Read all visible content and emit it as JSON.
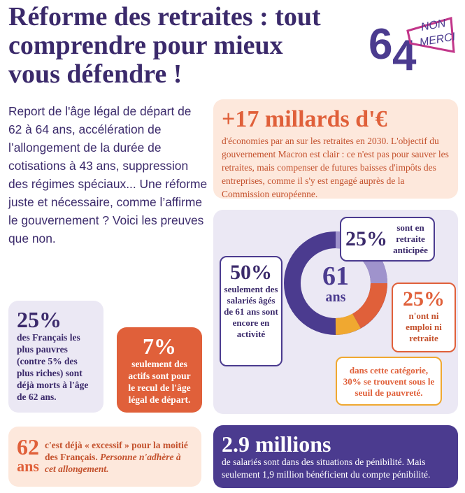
{
  "header": {
    "title": "Réforme des retraites : tout comprendre pour mieux vous défendre !",
    "logo": {
      "number_left": "6",
      "number_right": "4",
      "word_top": "NON",
      "word_bottom": "MERCI"
    }
  },
  "intro": "Report de l'âge légal de départ de 62 à 64 ans, accélération de l’allongement de la durée de cotisations à 43 ans, suppression des régimes spéciaux... Une réforme juste et nécessaire, comme l’affirme le gouvernement ? Voici les preuves que non.",
  "savings": {
    "headline": "+17 millards d'€",
    "text": "d'économies par an sur les retraites en 2030. L'objectif du gouvernement Macron est clair : ce n'est pas pour sauver les retraites, mais compenser de futures baisses d'impôts des entreprises, comme il s'y est engagé auprès de la Commission européenne."
  },
  "donut": {
    "center_number": "61",
    "center_unit": "ans",
    "employed": {
      "figure": "50%",
      "text": "seulement des salariés âgés de 61 ans sont encore en activité"
    },
    "retired": {
      "figure": "25%",
      "text": "sont en retraite anticipée"
    },
    "neither": {
      "figure": "25%",
      "text": "n'ont ni emploi ni retraite"
    },
    "poverty": {
      "text": "dans cette catégorie, 30% se trouvent sous le seuil de pauvreté."
    }
  },
  "poorest": {
    "figure": "25%",
    "text": "des Français les plus pauvres (contre 5% des plus riches) sont déjà morts à l'âge de 62 ans."
  },
  "actives": {
    "figure": "7%",
    "text": "seulement des actifs sont pour le recul de l'âge légal de départ."
  },
  "age62": {
    "number": "62",
    "unit": "ans",
    "text": "c'est déjà « excessif » pour la moitié des Français.",
    "emphasis": "Personne n'adhère à cet allongement."
  },
  "hardship": {
    "headline": "2.9 millions",
    "text": "de salariés sont dans des situations de pénibilité. Mais seulement 1,9 million bénéficient du compte pénibilité."
  }
}
